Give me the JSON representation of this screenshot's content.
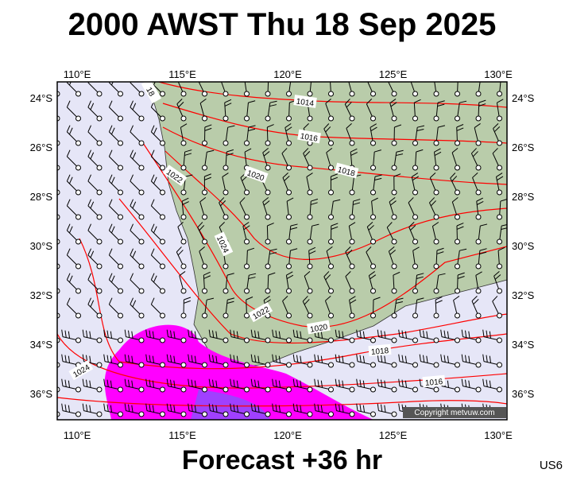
{
  "title": "2000 AWST Thu 18 Sep 2025",
  "map": {
    "lon_labels": [
      "110°E",
      "115°E",
      "120°E",
      "125°E",
      "130°E"
    ],
    "lat_labels": [
      "24°S",
      "26°S",
      "28°S",
      "30°S",
      "32°S",
      "34°S",
      "36°S"
    ],
    "isobar_labels": [
      "18",
      "1014",
      "1016",
      "1018",
      "1020",
      "1022",
      "1024",
      "1022",
      "1020",
      "1018",
      "1016",
      "1024"
    ]
  },
  "footer": {
    "forecast": "Forecast +36 hr",
    "code": "US6",
    "copyright": "Copyright metvuw.com"
  }
}
